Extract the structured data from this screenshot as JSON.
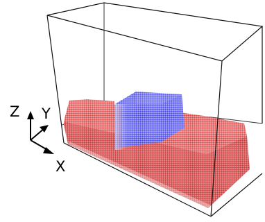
{
  "axes": {
    "x_label": "X",
    "y_label": "Y",
    "z_label": "Z"
  },
  "colors": {
    "substrate": "#e05555",
    "substrate_dark": "#c84848",
    "block": "#5a5af0",
    "block_dark": "#3a3ad0",
    "box_edge": "#111111",
    "axis": "#000000"
  }
}
